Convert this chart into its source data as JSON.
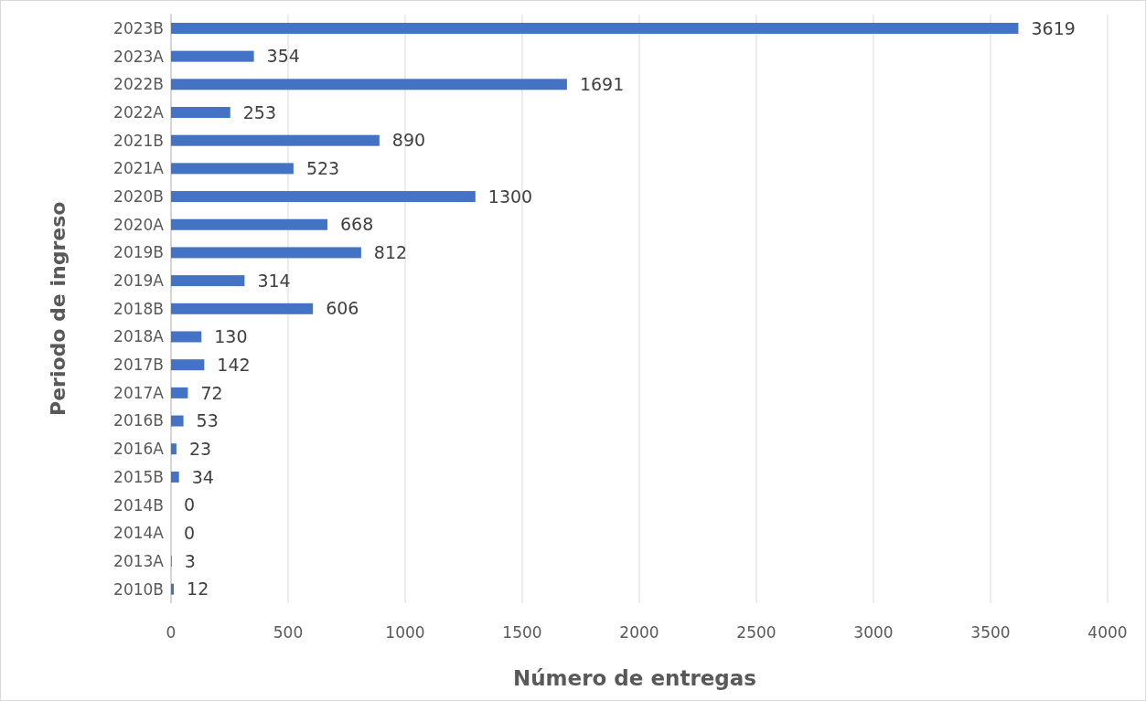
{
  "chart_data": {
    "type": "bar",
    "orientation": "horizontal",
    "xlabel": "Número de entregas",
    "ylabel": "Periodo de ingreso",
    "categories": [
      "2023B",
      "2023A",
      "2022B",
      "2022A",
      "2021B",
      "2021A",
      "2020B",
      "2020A",
      "2019B",
      "2019A",
      "2018B",
      "2018A",
      "2017B",
      "2017A",
      "2016B",
      "2016A",
      "2015B",
      "2014B",
      "2014A",
      "2013A",
      "2010B"
    ],
    "values": [
      3619,
      354,
      1691,
      253,
      890,
      523,
      1300,
      668,
      812,
      314,
      606,
      130,
      142,
      72,
      53,
      23,
      34,
      0,
      0,
      3,
      12
    ],
    "color": "#4472c4",
    "xlim": [
      0,
      4000
    ],
    "xticks": [
      0,
      500,
      1000,
      1500,
      2000,
      2500,
      3000,
      3500,
      4000
    ],
    "grid": "x",
    "data_labels": true
  }
}
